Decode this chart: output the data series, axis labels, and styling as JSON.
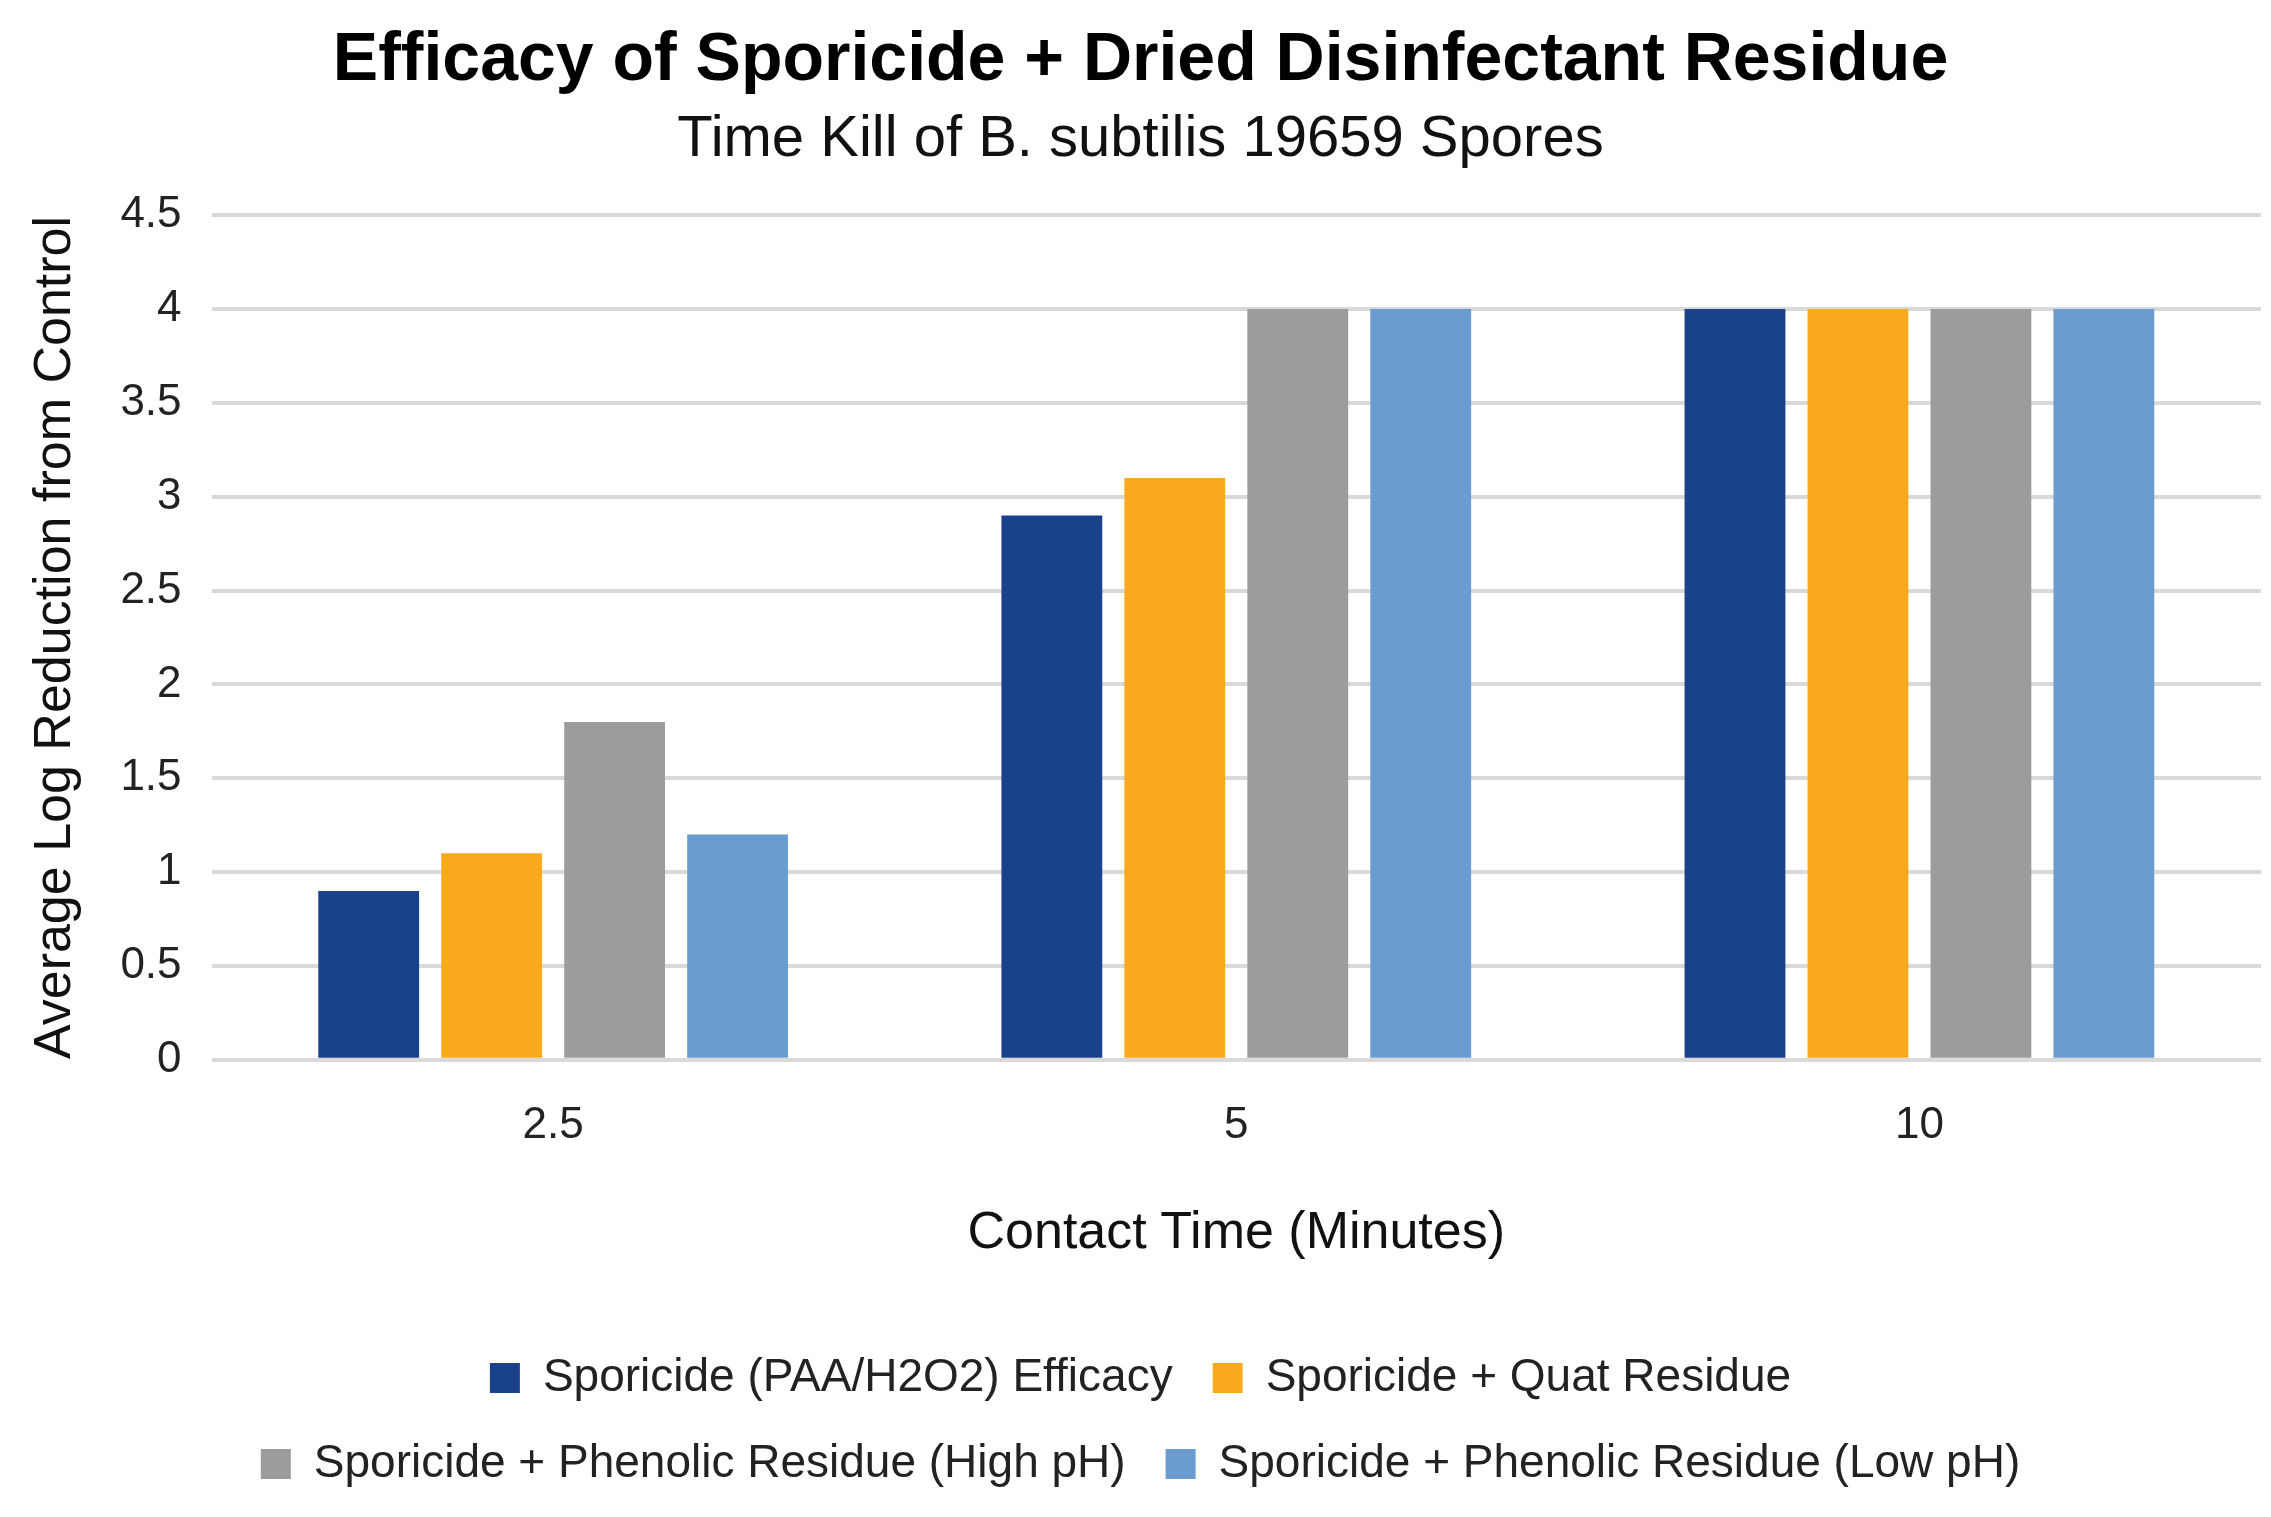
{
  "chart_data": {
    "type": "bar",
    "title": "Efficacy of Sporicide + Dried Disinfectant Residue",
    "subtitle": "Time Kill of B. subtilis 19659 Spores",
    "xlabel": "Contact Time (Minutes)",
    "ylabel": "Average Log Reduction from Control",
    "categories": [
      "2.5",
      "5",
      "10"
    ],
    "series": [
      {
        "name": "Sporicide (PAA/H2O2) Efficacy",
        "color": "#1a428a",
        "values": [
          0.9,
          2.9,
          4
        ]
      },
      {
        "name": "Sporicide + Quat Residue",
        "color": "#f9aa1c",
        "values": [
          1.1,
          3.1,
          4
        ]
      },
      {
        "name": "Sporicide + Phenolic Residue (High pH)",
        "color": "#9b9c9e",
        "values": [
          1.8,
          4,
          4
        ]
      },
      {
        "name": "Sporicide + Phenolic Residue (Low pH)",
        "color": "#6a9ccf",
        "values": [
          1.2,
          4,
          4
        ]
      }
    ],
    "ylim": [
      0,
      4.5
    ],
    "yticks": [
      0,
      0.5,
      1,
      1.5,
      2,
      2.5,
      3,
      3.5,
      4,
      4.5
    ],
    "grid": "y",
    "legend": "bottom"
  }
}
